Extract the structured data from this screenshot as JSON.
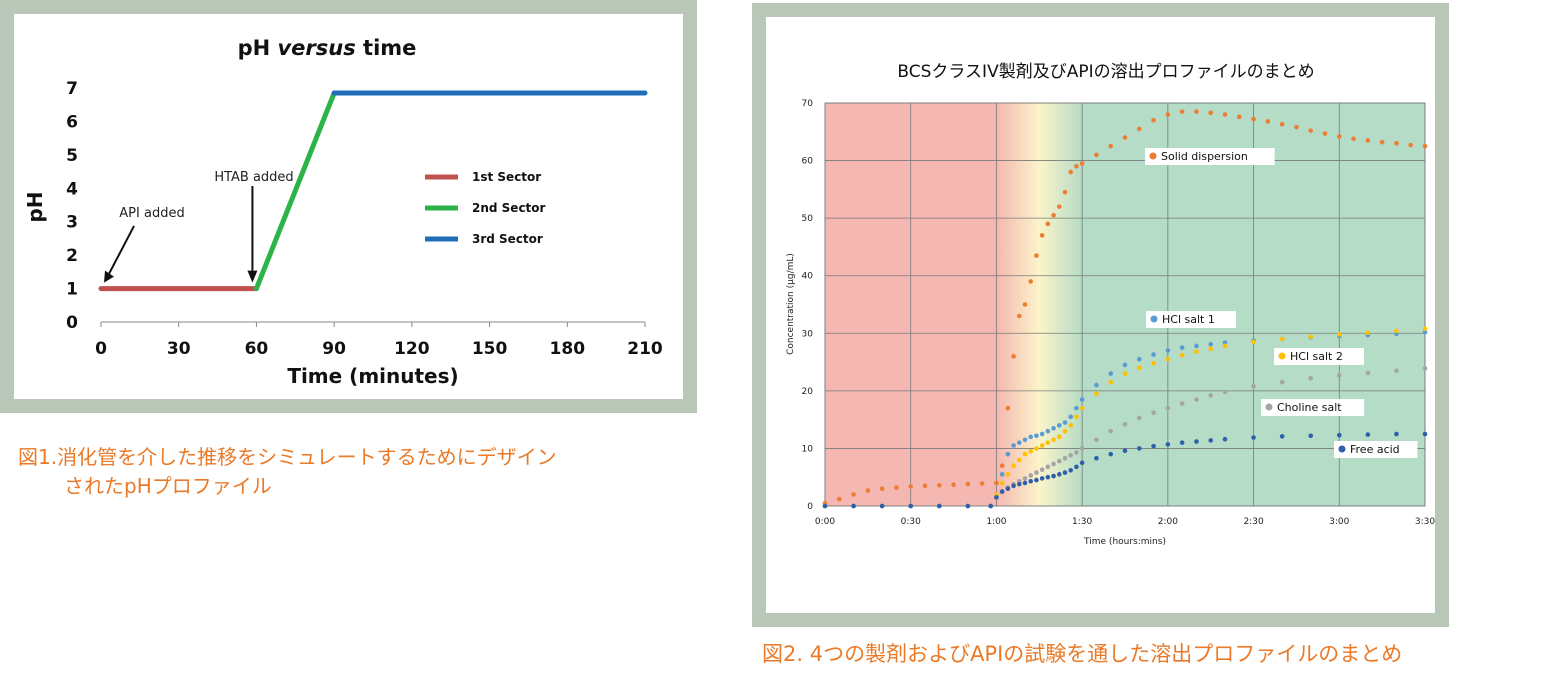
{
  "figure1": {
    "caption_line1": "図1.消化管を介した推移をシミュレートするためにデザイン",
    "caption_line2": "されたpHプロファイル",
    "chart_data": {
      "type": "line",
      "title": "pH versus time",
      "title_parts": [
        "pH ",
        "versus",
        " time"
      ],
      "xlabel": "Time (minutes)",
      "ylabel": "pH",
      "xlim": [
        0,
        210
      ],
      "ylim": [
        0,
        7
      ],
      "x_ticks": [
        "0",
        "30",
        "60",
        "90",
        "120",
        "150",
        "180",
        "210"
      ],
      "y_ticks": [
        "0",
        "1",
        "2",
        "3",
        "4",
        "5",
        "6",
        "7"
      ],
      "grid": false,
      "legend_position": "right",
      "series": [
        {
          "name": "1st Sector",
          "color": "#c0504d",
          "x": [
            0,
            60
          ],
          "y": [
            1,
            1
          ]
        },
        {
          "name": "2nd Sector",
          "color": "#2db34a",
          "x": [
            60,
            90
          ],
          "y": [
            1,
            6.85
          ]
        },
        {
          "name": "3rd Sector",
          "color": "#1f6fb8",
          "x": [
            90,
            210
          ],
          "y": [
            6.85,
            6.85
          ]
        }
      ],
      "annotations": [
        {
          "text": "API added",
          "x": 0,
          "y": 1
        },
        {
          "text": "HTAB added",
          "x": 60,
          "y": 1
        }
      ]
    }
  },
  "figure2": {
    "caption": "図2. 4つの製剤およびAPIの試験を通した溶出プロファイルのまとめ",
    "chart_data": {
      "type": "scatter",
      "title": "BCSクラスIV製剤及びAPIの溶出プロファイルのまとめ",
      "xlabel": "Time (hours:mins)",
      "ylabel": "Concentration (µg/mL)",
      "xlim": [
        0,
        210
      ],
      "ylim": [
        0,
        70
      ],
      "x_ticks": [
        "0:00",
        "0:30",
        "1:00",
        "1:30",
        "2:00",
        "2:30",
        "3:00",
        "3:30"
      ],
      "y_ticks": [
        "0",
        "10",
        "20",
        "30",
        "40",
        "50",
        "60",
        "70"
      ],
      "grid": true,
      "background_bands": [
        {
          "from": 0,
          "to": 60,
          "color": "#f5b7b1"
        },
        {
          "from": 60,
          "to": 90,
          "color": "gradient-pink-yellow-green"
        },
        {
          "from": 90,
          "to": 210,
          "color": "#b5dcc6"
        }
      ],
      "series": [
        {
          "name": "Solid dispersion",
          "color": "#ed7d31",
          "x": [
            0,
            5,
            10,
            15,
            20,
            25,
            30,
            35,
            40,
            45,
            50,
            55,
            60,
            62,
            64,
            66,
            68,
            70,
            72,
            74,
            76,
            78,
            80,
            82,
            84,
            86,
            88,
            90,
            95,
            100,
            105,
            110,
            115,
            120,
            125,
            130,
            135,
            140,
            145,
            150,
            155,
            160,
            165,
            170,
            175,
            180,
            185,
            190,
            195,
            200,
            205,
            210
          ],
          "y": [
            0.5,
            1.2,
            2,
            2.7,
            3,
            3.2,
            3.4,
            3.5,
            3.6,
            3.7,
            3.8,
            3.9,
            4,
            7,
            17,
            26,
            33,
            35,
            39,
            43.5,
            47,
            49,
            50.5,
            52,
            54.5,
            58,
            59,
            59.5,
            61,
            62.5,
            64,
            65.5,
            67,
            68,
            68.5,
            68.5,
            68.3,
            68,
            67.6,
            67.2,
            66.8,
            66.3,
            65.8,
            65.2,
            64.7,
            64.2,
            63.8,
            63.5,
            63.2,
            63,
            62.7,
            62.5
          ]
        },
        {
          "name": "HCl salt 1",
          "color": "#5b9bd5",
          "x": [
            0,
            10,
            20,
            30,
            40,
            50,
            58,
            60,
            62,
            64,
            66,
            68,
            70,
            72,
            74,
            76,
            78,
            80,
            82,
            84,
            86,
            88,
            90,
            95,
            100,
            105,
            110,
            115,
            120,
            125,
            130,
            135,
            140,
            150,
            160,
            170,
            180,
            190,
            200,
            210
          ],
          "y": [
            0,
            0,
            0,
            0,
            0,
            0,
            0,
            2,
            5.5,
            9,
            10.5,
            11,
            11.5,
            12,
            12.2,
            12.5,
            13,
            13.5,
            14,
            14.5,
            15.5,
            17,
            18.5,
            21,
            23,
            24.5,
            25.5,
            26.3,
            27,
            27.5,
            27.8,
            28.1,
            28.4,
            28.7,
            29,
            29.3,
            29.5,
            29.7,
            29.9,
            30.2
          ]
        },
        {
          "name": "HCl salt 2",
          "color": "#ffc000",
          "x": [
            0,
            10,
            20,
            30,
            40,
            50,
            58,
            60,
            62,
            64,
            66,
            68,
            70,
            72,
            74,
            76,
            78,
            80,
            82,
            84,
            86,
            88,
            90,
            95,
            100,
            105,
            110,
            115,
            120,
            125,
            130,
            135,
            140,
            150,
            160,
            170,
            180,
            190,
            200,
            210
          ],
          "y": [
            0,
            0,
            0,
            0,
            0,
            0,
            0,
            2,
            4,
            5.5,
            7,
            8,
            9,
            9.5,
            10,
            10.5,
            11,
            11.5,
            12,
            13,
            14,
            15.5,
            17,
            19.5,
            21.5,
            23,
            24,
            24.8,
            25.5,
            26.2,
            26.8,
            27.3,
            27.8,
            28.5,
            29,
            29.4,
            29.8,
            30.1,
            30.4,
            30.8
          ]
        },
        {
          "name": "Choline salt",
          "color": "#a5a5a5",
          "x": [
            0,
            10,
            20,
            30,
            40,
            50,
            58,
            60,
            62,
            64,
            66,
            68,
            70,
            72,
            74,
            76,
            78,
            80,
            82,
            84,
            86,
            88,
            90,
            95,
            100,
            105,
            110,
            115,
            120,
            125,
            130,
            135,
            140,
            150,
            160,
            170,
            180,
            190,
            200,
            210
          ],
          "y": [
            0,
            0,
            0,
            0,
            0,
            0,
            0,
            1.5,
            2.5,
            3.2,
            3.8,
            4.3,
            4.8,
            5.3,
            5.8,
            6.3,
            6.8,
            7.3,
            7.8,
            8.3,
            8.8,
            9.3,
            10,
            11.5,
            13,
            14.2,
            15.3,
            16.2,
            17,
            17.8,
            18.5,
            19.2,
            19.8,
            20.8,
            21.5,
            22.2,
            22.7,
            23.1,
            23.5,
            23.9
          ]
        },
        {
          "name": "Free acid",
          "color": "#2e5faa",
          "x": [
            0,
            10,
            20,
            30,
            40,
            50,
            58,
            60,
            62,
            64,
            66,
            68,
            70,
            72,
            74,
            76,
            78,
            80,
            82,
            84,
            86,
            88,
            90,
            95,
            100,
            105,
            110,
            115,
            120,
            125,
            130,
            135,
            140,
            150,
            160,
            170,
            180,
            190,
            200,
            210
          ],
          "y": [
            0,
            0,
            0,
            0,
            0,
            0,
            0,
            1.5,
            2.5,
            3,
            3.5,
            3.8,
            4,
            4.3,
            4.5,
            4.8,
            5,
            5.2,
            5.5,
            5.8,
            6.2,
            6.8,
            7.5,
            8.3,
            9,
            9.6,
            10,
            10.4,
            10.7,
            11,
            11.2,
            11.4,
            11.6,
            11.9,
            12.1,
            12.2,
            12.3,
            12.4,
            12.5,
            12.5
          ]
        }
      ]
    }
  }
}
